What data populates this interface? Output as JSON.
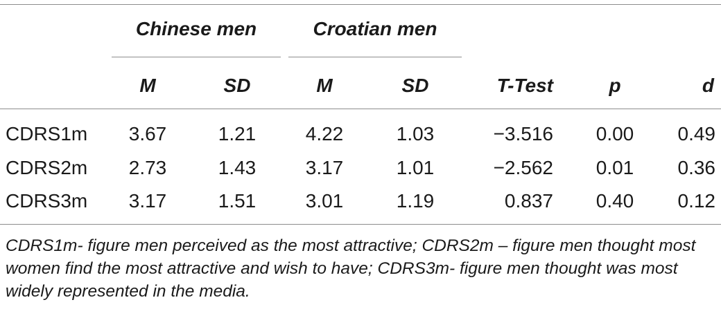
{
  "table": {
    "group_headers": [
      "Chinese men",
      "Croatian men"
    ],
    "columns": [
      "M",
      "SD",
      "M",
      "SD",
      "T-Test",
      "p",
      "d"
    ],
    "rows": [
      {
        "label": "CDRS1m",
        "values": [
          "3.67",
          "1.21",
          "4.22",
          "1.03",
          "−3.516",
          "0.00",
          "0.49"
        ]
      },
      {
        "label": "CDRS2m",
        "values": [
          "2.73",
          "1.43",
          "3.17",
          "1.01",
          "−2.562",
          "0.01",
          "0.36"
        ]
      },
      {
        "label": "CDRS3m",
        "values": [
          "3.17",
          "1.51",
          "3.01",
          "1.19",
          "0.837",
          "0.40",
          "0.12"
        ]
      }
    ],
    "footnote": "CDRS1m- figure men perceived as the most attractive; CDRS2m – figure men thought most women find the most attractive and wish to have; CDRS3m- figure men thought was most widely represented in the media."
  }
}
